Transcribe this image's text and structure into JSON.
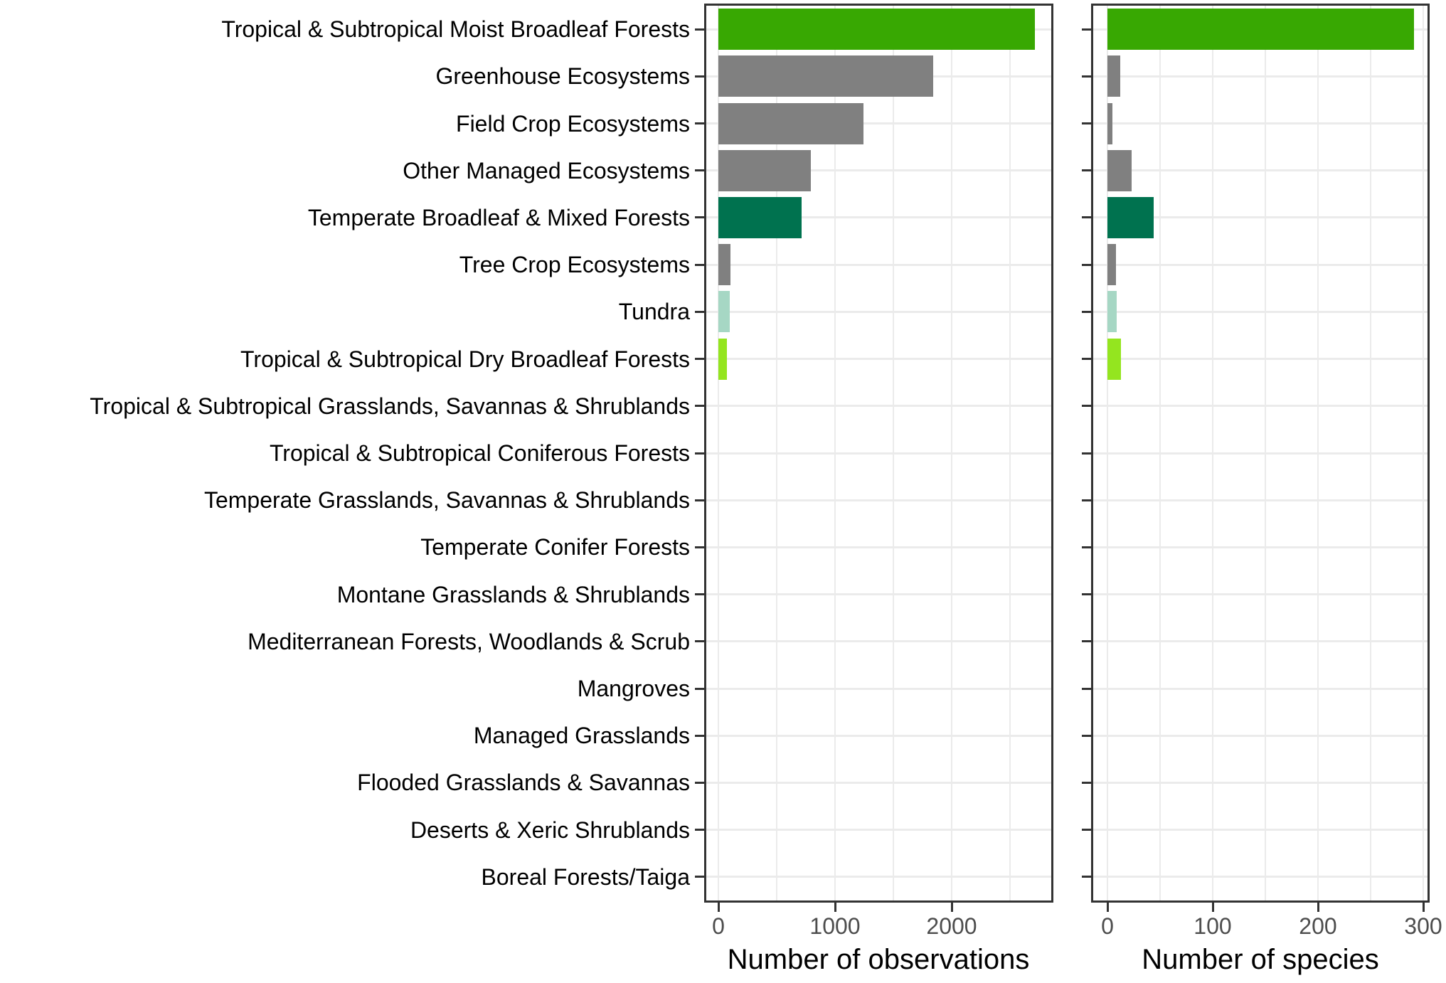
{
  "figure": {
    "background": "#FFFFFF",
    "panel_border_color": "#333333",
    "gridline_color": "#EBEBEB",
    "tick_color": "#333333",
    "axis_tick_text_color": "#4D4D4D",
    "category_text_color": "#000000"
  },
  "chart_data": {
    "type": "bar",
    "orientation": "horizontal",
    "grid": true,
    "legend_position": "none",
    "categories": [
      "Tropical & Subtropical Moist Broadleaf Forests",
      "Greenhouse Ecosystems",
      "Field Crop Ecosystems",
      "Other Managed Ecosystems",
      "Temperate Broadleaf & Mixed Forests",
      "Tree Crop Ecosystems",
      "Tundra",
      "Tropical & Subtropical Dry Broadleaf Forests",
      "Tropical & Subtropical Grasslands, Savannas & Shrublands",
      "Tropical & Subtropical Coniferous Forests",
      "Temperate Grasslands, Savannas & Shrublands",
      "Temperate Conifer Forests",
      "Montane Grasslands & Shrublands",
      "Mediterranean Forests, Woodlands & Scrub",
      "Mangroves",
      "Managed Grasslands",
      "Flooded Grasslands & Savannas",
      "Deserts & Xeric Shrublands",
      "Boreal Forests/Taiga"
    ],
    "category_colors": [
      "#38A802",
      "#808080",
      "#808080",
      "#808080",
      "#00724F",
      "#808080",
      "#A6D7C4",
      "#94E51F",
      "#808080",
      "#808080",
      "#808080",
      "#808080",
      "#808080",
      "#808080",
      "#808080",
      "#808080",
      "#808080",
      "#808080",
      "#808080"
    ],
    "series": [
      {
        "name": "Number of observations",
        "values": [
          2715,
          1840,
          1245,
          790,
          715,
          105,
          95,
          73,
          0,
          0,
          0,
          0,
          0,
          0,
          0,
          0,
          0,
          0,
          0
        ],
        "xlim": [
          0,
          2850
        ],
        "major_ticks": [
          0,
          1000,
          2000
        ],
        "gridline_step": 500,
        "gridline_max": 2500
      },
      {
        "name": "Number of species",
        "values": [
          291,
          12,
          5,
          23,
          44,
          8,
          9,
          13,
          0,
          0,
          0,
          0,
          0,
          0,
          0,
          0,
          0,
          0,
          0
        ],
        "xlim": [
          0,
          305
        ],
        "major_ticks": [
          0,
          100,
          200,
          300
        ],
        "gridline_step": 50,
        "gridline_max": 300
      }
    ]
  },
  "axes": {
    "x1_title": "Number of observations",
    "x2_title": "Number of species"
  }
}
